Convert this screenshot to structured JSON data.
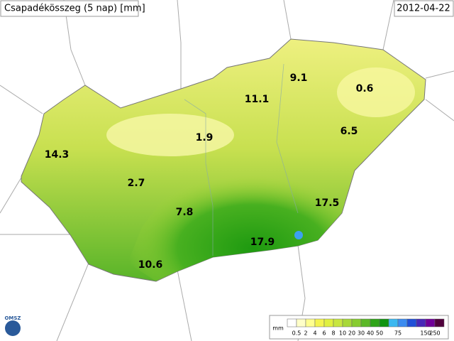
{
  "header": {
    "title": "Csapadékösszeg (5 nap) [mm]",
    "date": "2012-04-22"
  },
  "stations": [
    9.1,
    0.6,
    11.1,
    6.5,
    14.3,
    1.9,
    2.7,
    7.8,
    17.5,
    17.9,
    10.6
  ],
  "legend": {
    "unit": "mm",
    "colors": [
      "#ffffff",
      "#ffffc8",
      "#ffff90",
      "#f4f450",
      "#e0f040",
      "#c8e640",
      "#a8d838",
      "#88cc30",
      "#5cb828",
      "#2ea418",
      "#109410",
      "#3cb8f0",
      "#3c8cf0",
      "#2050d8",
      "#4828b8",
      "#700098",
      "#50003c"
    ],
    "ticks": [
      "0.5",
      "2",
      "4",
      "6",
      "8",
      "10",
      "20",
      "30",
      "40",
      "50",
      "75",
      "150",
      "250"
    ]
  },
  "logo": "OMSZ"
}
